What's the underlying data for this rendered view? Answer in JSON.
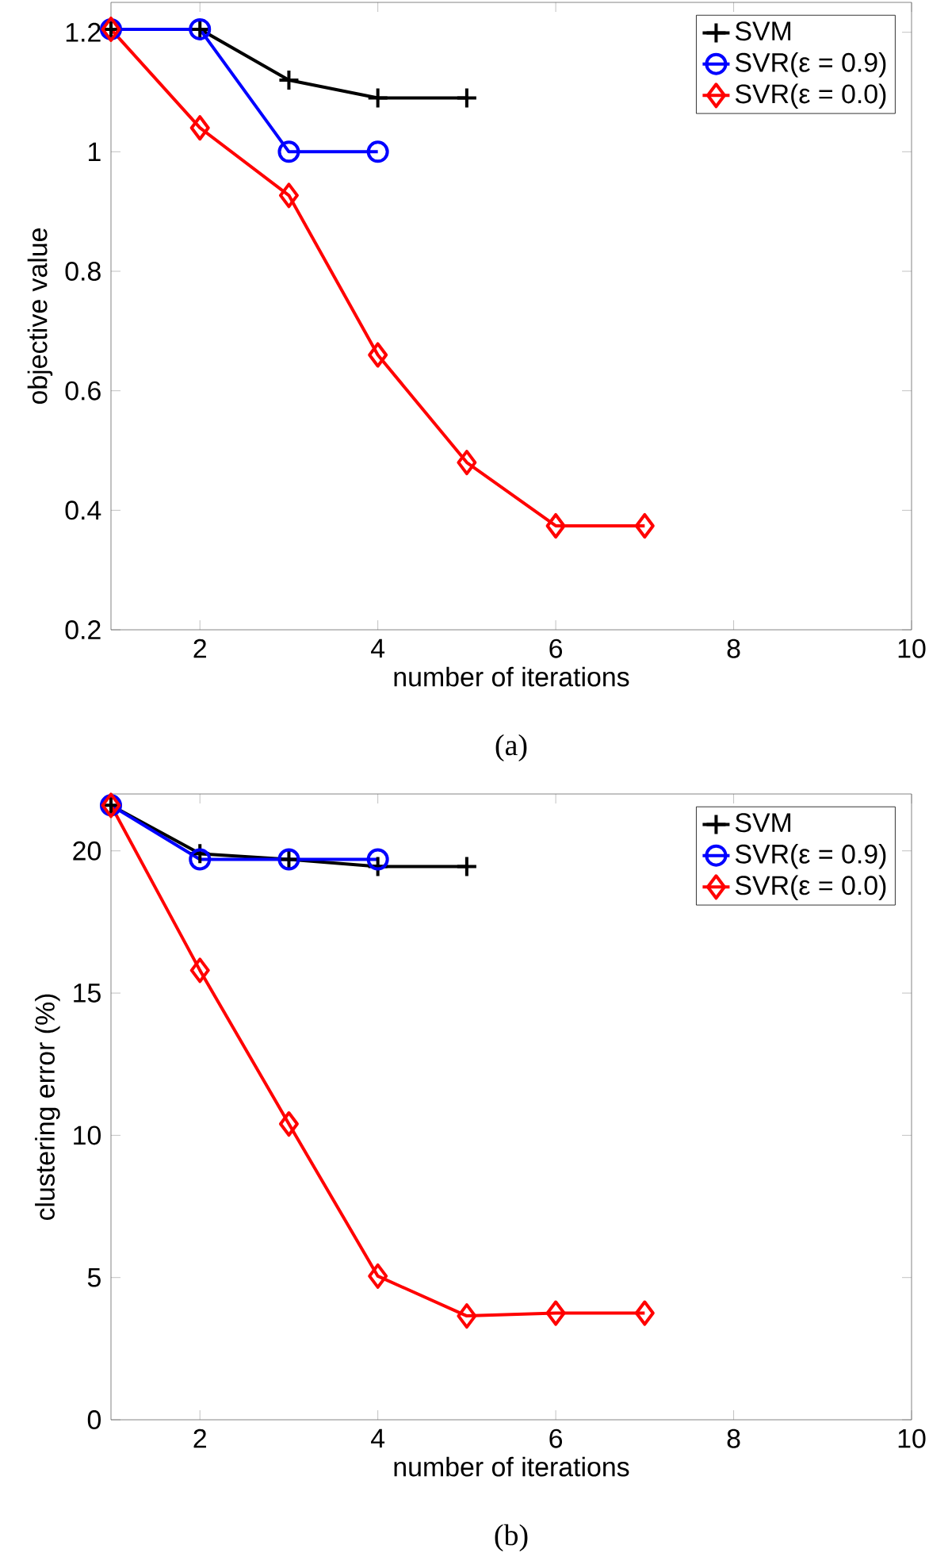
{
  "chart_data": [
    {
      "type": "line",
      "xlabel": "number of iterations",
      "ylabel": "objective value",
      "annotations": [
        "(a)"
      ],
      "xlim": [
        1,
        10
      ],
      "xticks": [
        2,
        4,
        6,
        8,
        10
      ],
      "ylim": [
        0.2,
        1.25
      ],
      "yticks": [
        0.2,
        0.4,
        0.6,
        0.8,
        1,
        1.2
      ],
      "grid": false,
      "legend": "top right",
      "line_style": "solid",
      "series": [
        {
          "name": "SVM",
          "color": "#000000",
          "marker": "cross",
          "x": [
            1,
            2,
            3,
            4,
            5
          ],
          "values": [
            1.205,
            1.205,
            1.12,
            1.09,
            1.09
          ]
        },
        {
          "name": "SVR(ε = 0.9)",
          "color": "#0000ff",
          "marker": "circle",
          "x": [
            1,
            2,
            3,
            4
          ],
          "values": [
            1.205,
            1.205,
            1.0,
            1.0
          ]
        },
        {
          "name": "SVR(ε = 0.0)",
          "color": "#ff0000",
          "marker": "diamond",
          "x": [
            1,
            2,
            3,
            4,
            5,
            6,
            7
          ],
          "values": [
            1.205,
            1.04,
            0.927,
            0.66,
            0.48,
            0.374,
            0.374
          ]
        }
      ]
    },
    {
      "type": "line",
      "xlabel": "number of iterations",
      "ylabel": "clustering error (%)",
      "annotations": [
        "(b)"
      ],
      "xlim": [
        1,
        10
      ],
      "xticks": [
        2,
        4,
        6,
        8,
        10
      ],
      "ylim": [
        0,
        22
      ],
      "yticks": [
        0,
        5,
        10,
        15,
        20
      ],
      "grid": false,
      "legend": "top right",
      "line_style": "solid",
      "series": [
        {
          "name": "SVM",
          "color": "#000000",
          "marker": "cross",
          "x": [
            1,
            2,
            3,
            4,
            5
          ],
          "values": [
            21.6,
            19.9,
            19.7,
            19.45,
            19.45
          ]
        },
        {
          "name": "SVR(ε = 0.9)",
          "color": "#0000ff",
          "marker": "circle",
          "x": [
            1,
            2,
            3,
            4
          ],
          "values": [
            21.6,
            19.7,
            19.7,
            19.7
          ]
        },
        {
          "name": "SVR(ε = 0.0)",
          "color": "#ff0000",
          "marker": "diamond",
          "x": [
            1,
            2,
            3,
            4,
            5,
            6,
            7
          ],
          "values": [
            21.6,
            15.8,
            10.4,
            5.05,
            3.65,
            3.75,
            3.75
          ]
        }
      ]
    }
  ]
}
